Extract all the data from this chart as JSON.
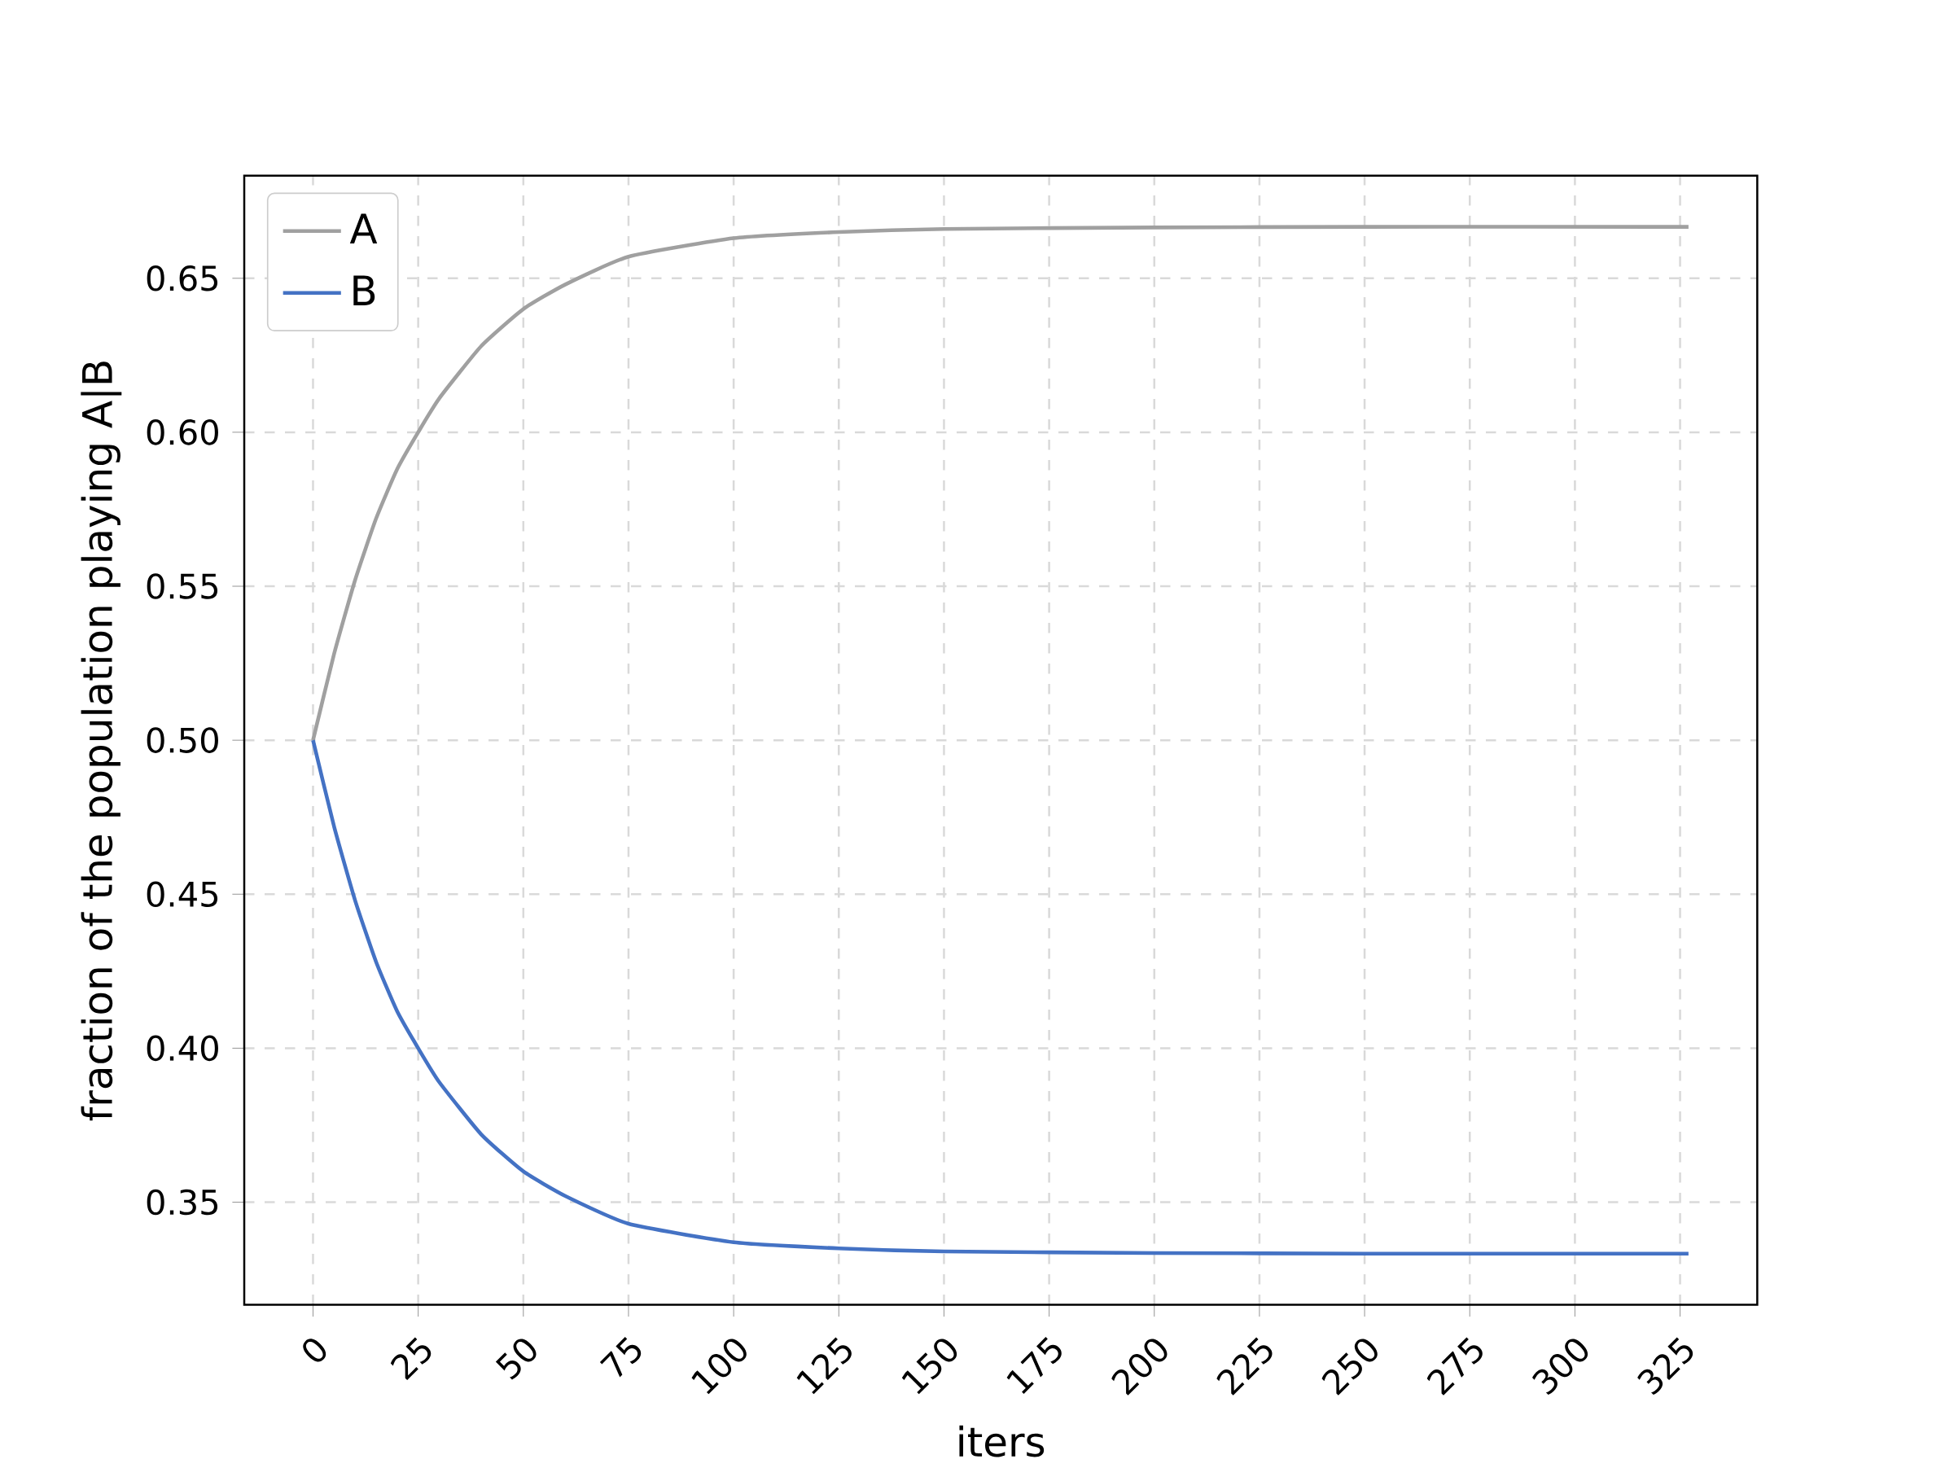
{
  "chart_data": {
    "type": "line",
    "xlabel": "iters",
    "ylabel": "fraction of the population playing A|B",
    "xlim": [
      -16.35,
      343.35
    ],
    "ylim": [
      0.3167,
      0.6833
    ],
    "xticks": [
      0,
      25,
      50,
      75,
      100,
      125,
      150,
      175,
      200,
      225,
      250,
      275,
      300,
      325
    ],
    "yticks": [
      0.35,
      {
        "value": 0.4,
        "label": "0.40"
      },
      0.45,
      {
        "value": 0.5,
        "label": "0.50"
      },
      0.55,
      {
        "value": 0.6,
        "label": "0.60"
      },
      0.65
    ],
    "grid": true,
    "legend": "top left",
    "line_style": "solid",
    "x": [
      0,
      5,
      10,
      15,
      20,
      25,
      30,
      40,
      50,
      60,
      75,
      100,
      125,
      150,
      200,
      250,
      327
    ],
    "series": [
      {
        "name": "A",
        "color": "#a0a0a0",
        "values": [
          0.5,
          0.528,
          0.552,
          0.572,
          0.588,
          0.6,
          0.611,
          0.628,
          0.64,
          0.648,
          0.657,
          0.663,
          0.665,
          0.666,
          0.6665,
          0.6667,
          0.6667
        ]
      },
      {
        "name": "B",
        "color": "#4472c4",
        "values": [
          0.5,
          0.472,
          0.448,
          0.428,
          0.412,
          0.4,
          0.389,
          0.372,
          0.36,
          0.352,
          0.343,
          0.337,
          0.335,
          0.334,
          0.3335,
          0.3333,
          0.3333
        ]
      }
    ]
  }
}
